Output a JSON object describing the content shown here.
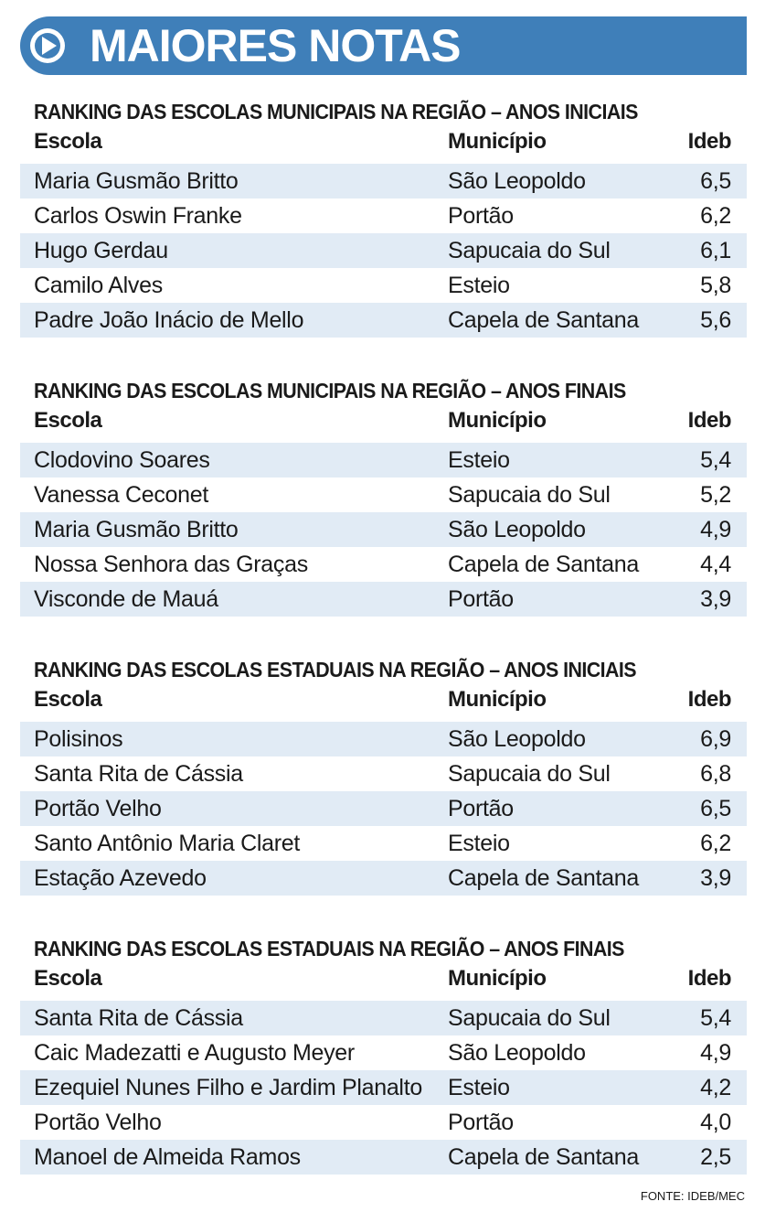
{
  "header": {
    "title": "MAIORES NOTAS"
  },
  "sections": [
    {
      "title": "RANKING DAS ESCOLAS MUNICIPAIS NA REGIÃO – ANOS INICIAIS",
      "columns": [
        "Escola",
        "Município",
        "Ideb"
      ],
      "rows": [
        [
          "Maria Gusmão Britto",
          "São Leopoldo",
          "6,5"
        ],
        [
          "Carlos Oswin Franke",
          "Portão",
          "6,2"
        ],
        [
          "Hugo Gerdau",
          "Sapucaia do Sul",
          "6,1"
        ],
        [
          "Camilo Alves",
          "Esteio",
          "5,8"
        ],
        [
          "Padre João Inácio de Mello",
          "Capela de Santana",
          "5,6"
        ]
      ]
    },
    {
      "title": "RANKING DAS ESCOLAS MUNICIPAIS NA REGIÃO – ANOS FINAIS",
      "columns": [
        "Escola",
        "Município",
        "Ideb"
      ],
      "rows": [
        [
          "Clodovino Soares",
          "Esteio",
          "5,4"
        ],
        [
          "Vanessa Ceconet",
          "Sapucaia do Sul",
          "5,2"
        ],
        [
          "Maria Gusmão Britto",
          "São Leopoldo",
          "4,9"
        ],
        [
          "Nossa Senhora das Graças",
          "Capela de Santana",
          "4,4"
        ],
        [
          "Visconde de Mauá",
          "Portão",
          "3,9"
        ]
      ]
    },
    {
      "title": "RANKING DAS ESCOLAS ESTADUAIS NA REGIÃO – ANOS INICIAIS",
      "columns": [
        "Escola",
        "Município",
        "Ideb"
      ],
      "rows": [
        [
          "Polisinos",
          "São Leopoldo",
          "6,9"
        ],
        [
          "Santa Rita de Cássia",
          "Sapucaia do Sul",
          "6,8"
        ],
        [
          "Portão Velho",
          "Portão",
          "6,5"
        ],
        [
          "Santo Antônio Maria Claret",
          "Esteio",
          "6,2"
        ],
        [
          "Estação Azevedo",
          "Capela de Santana",
          "3,9"
        ]
      ]
    },
    {
      "title": "RANKING DAS ESCOLAS ESTADUAIS NA REGIÃO – ANOS FINAIS",
      "columns": [
        "Escola",
        "Município",
        "Ideb"
      ],
      "rows": [
        [
          "Santa Rita de Cássia",
          "Sapucaia do Sul",
          "5,4"
        ],
        [
          "Caic Madezatti e Augusto Meyer",
          "São Leopoldo",
          "4,9"
        ],
        [
          "Ezequiel Nunes Filho e Jardim Planalto",
          "Esteio",
          "4,2"
        ],
        [
          "Portão Velho",
          "Portão",
          "4,0"
        ],
        [
          "Manoel de Almeida Ramos",
          "Capela de Santana",
          "2,5"
        ]
      ]
    }
  ],
  "source": "FONTE: IDEB/MEC"
}
